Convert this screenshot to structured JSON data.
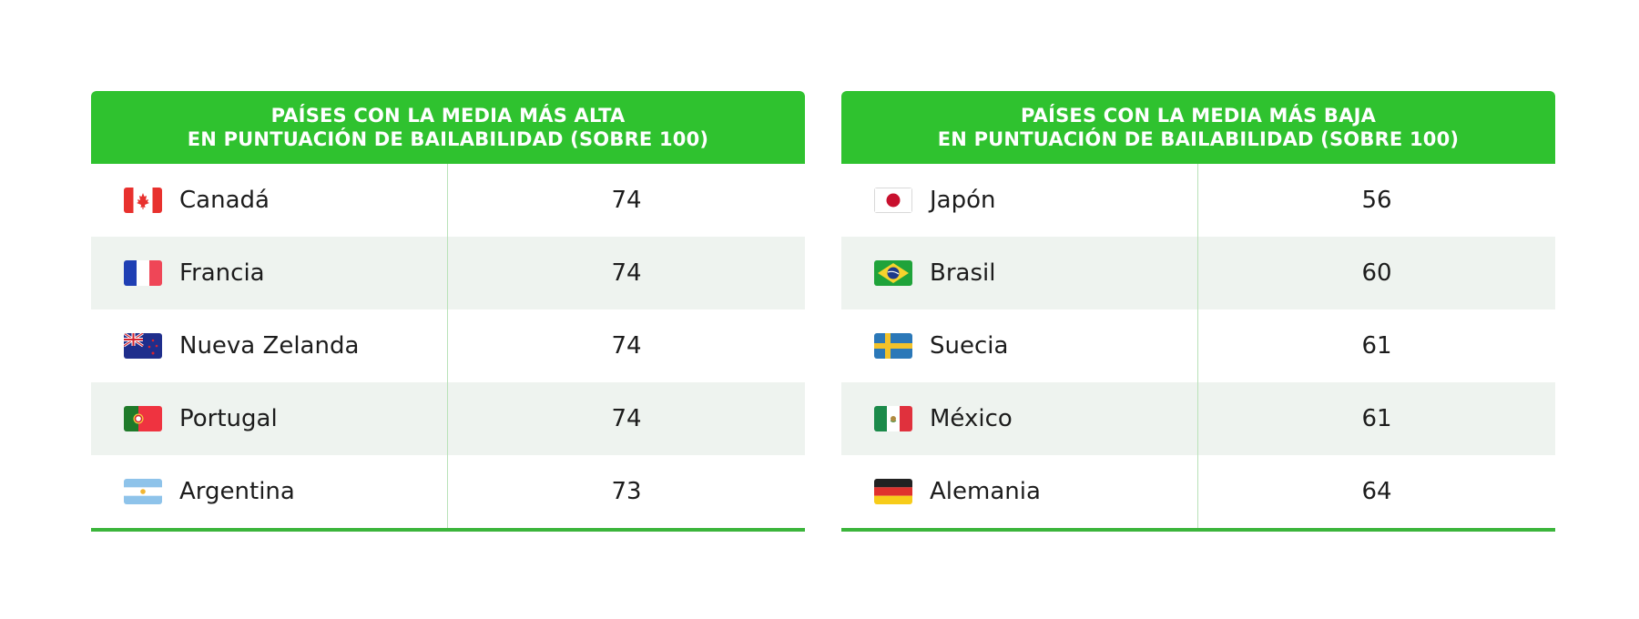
{
  "chart_data": [
    {
      "type": "table",
      "title_line1": "PAÍSES CON LA MEDIA MÁS ALTA",
      "title_line2": "EN PUNTUACIÓN DE BAILABILIDAD (SOBRE 100)",
      "rows": [
        {
          "country": "Canadá",
          "score": "74",
          "flag": "canada-flag-icon"
        },
        {
          "country": "Francia",
          "score": "74",
          "flag": "france-flag-icon"
        },
        {
          "country": "Nueva Zelanda",
          "score": "74",
          "flag": "new-zealand-flag-icon"
        },
        {
          "country": "Portugal",
          "score": "74",
          "flag": "portugal-flag-icon"
        },
        {
          "country": "Argentina",
          "score": "73",
          "flag": "argentina-flag-icon"
        }
      ]
    },
    {
      "type": "table",
      "title_line1": "PAÍSES CON LA MEDIA MÁS BAJA",
      "title_line2": "EN PUNTUACIÓN DE BAILABILIDAD (SOBRE 100)",
      "rows": [
        {
          "country": "Japón",
          "score": "56",
          "flag": "japan-flag-icon"
        },
        {
          "country": "Brasil",
          "score": "60",
          "flag": "brazil-flag-icon"
        },
        {
          "country": "Suecia",
          "score": "61",
          "flag": "sweden-flag-icon"
        },
        {
          "country": "México",
          "score": "61",
          "flag": "mexico-flag-icon"
        },
        {
          "country": "Alemania",
          "score": "64",
          "flag": "germany-flag-icon"
        }
      ]
    }
  ],
  "colors": {
    "header_bg": "#2fc22f",
    "alt_row_bg": "#eef3ef",
    "accent_line": "#3bb53b"
  }
}
